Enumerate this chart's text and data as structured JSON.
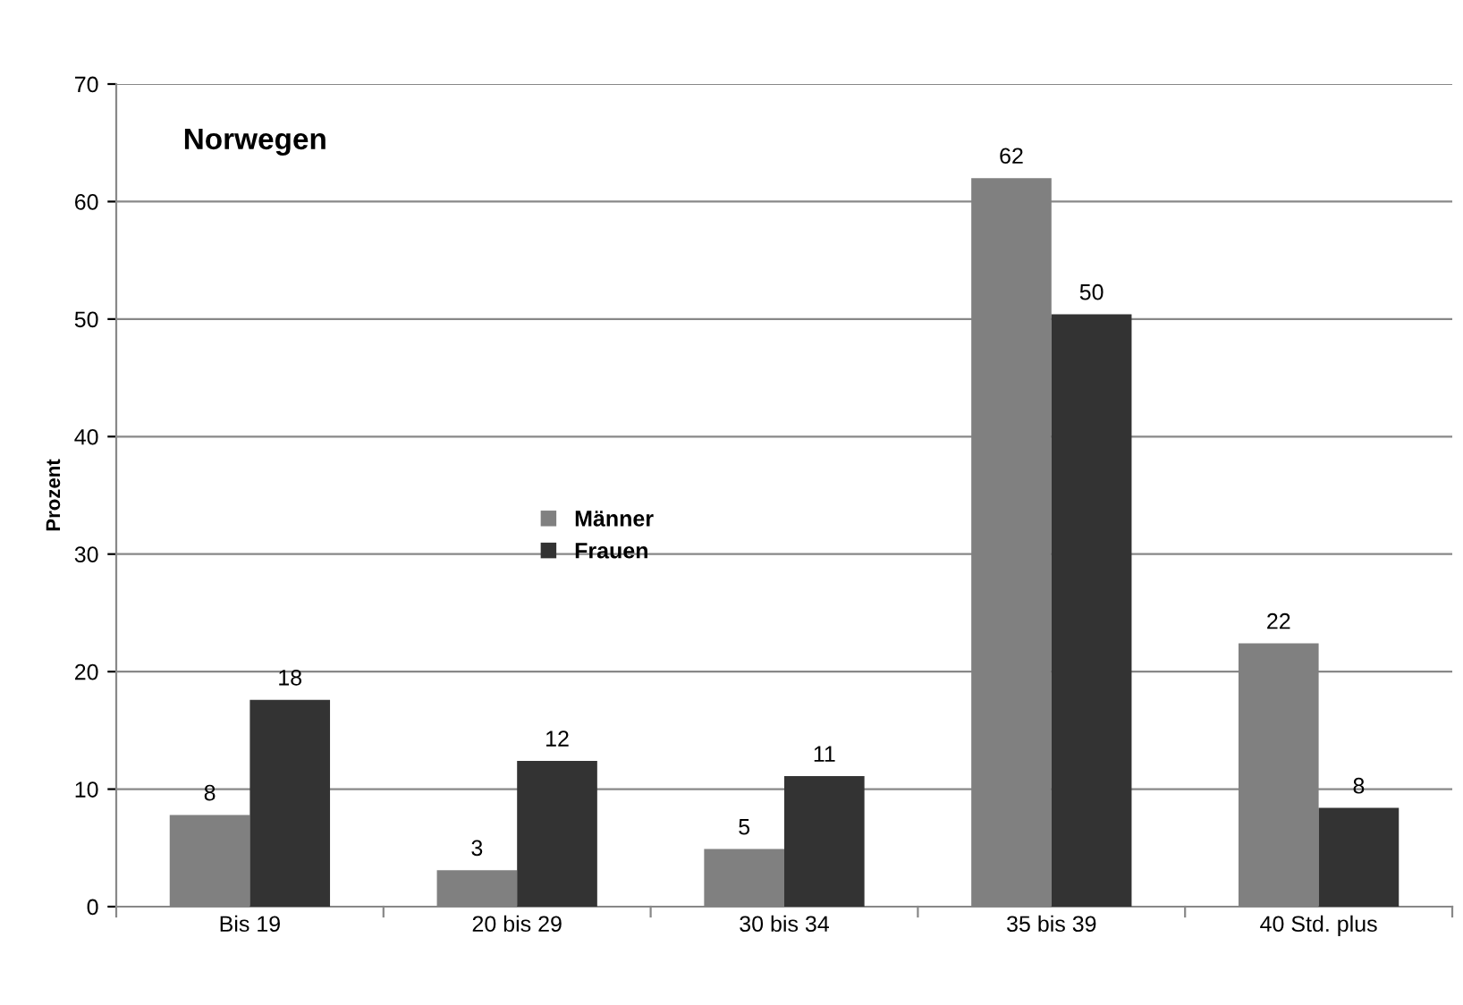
{
  "chart_data": {
    "type": "bar",
    "title": "Norwegen",
    "ylabel": "Prozent",
    "categories": [
      "Bis 19",
      "20 bis 29",
      "30 bis 34",
      "35 bis 39",
      "40 Std. plus"
    ],
    "series": [
      {
        "name": "Männer",
        "color": "#808080",
        "values": [
          7.8,
          3.1,
          4.9,
          62,
          22.4
        ],
        "value_labels": [
          "8",
          "3",
          "5",
          "62",
          "22"
        ]
      },
      {
        "name": "Frauen",
        "color": "#333333",
        "values": [
          17.6,
          12.4,
          11.1,
          50.4,
          8.4
        ],
        "value_labels": [
          "18",
          "12",
          "11",
          "50",
          "8"
        ]
      }
    ],
    "ylim": [
      0,
      70
    ],
    "yticks": [
      0,
      10,
      20,
      30,
      40,
      50,
      60,
      70
    ],
    "grid": "y",
    "legend": "center"
  }
}
